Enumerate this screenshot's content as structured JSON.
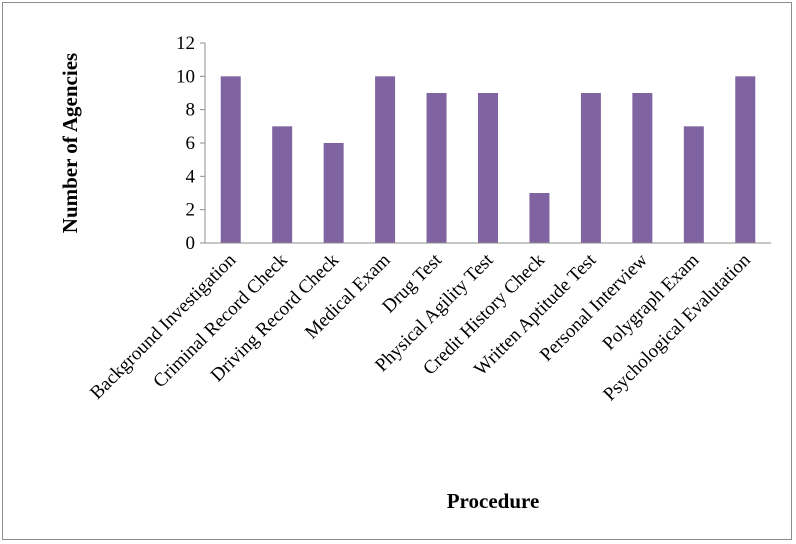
{
  "chart_data": {
    "type": "bar",
    "title": "",
    "xlabel": "Procedure",
    "ylabel": "Number of Agencies",
    "categories": [
      "Background Investigation",
      "Criminal Record Check",
      "Driving Record Check",
      "Medical Exam",
      "Drug Test",
      "Physical Agility Test",
      "Credit History Check",
      "Written Aptitude Test",
      "Personal Interview",
      "Polygraph Exam",
      "Psychological Evalutation"
    ],
    "values": [
      10,
      7,
      6,
      10,
      9,
      9,
      3,
      9,
      9,
      7,
      10
    ],
    "ylim": [
      0,
      12
    ],
    "yticks": [
      0,
      2,
      4,
      6,
      8,
      10,
      12
    ],
    "grid": false,
    "legend": "none",
    "bar_color": "#8064a2"
  }
}
